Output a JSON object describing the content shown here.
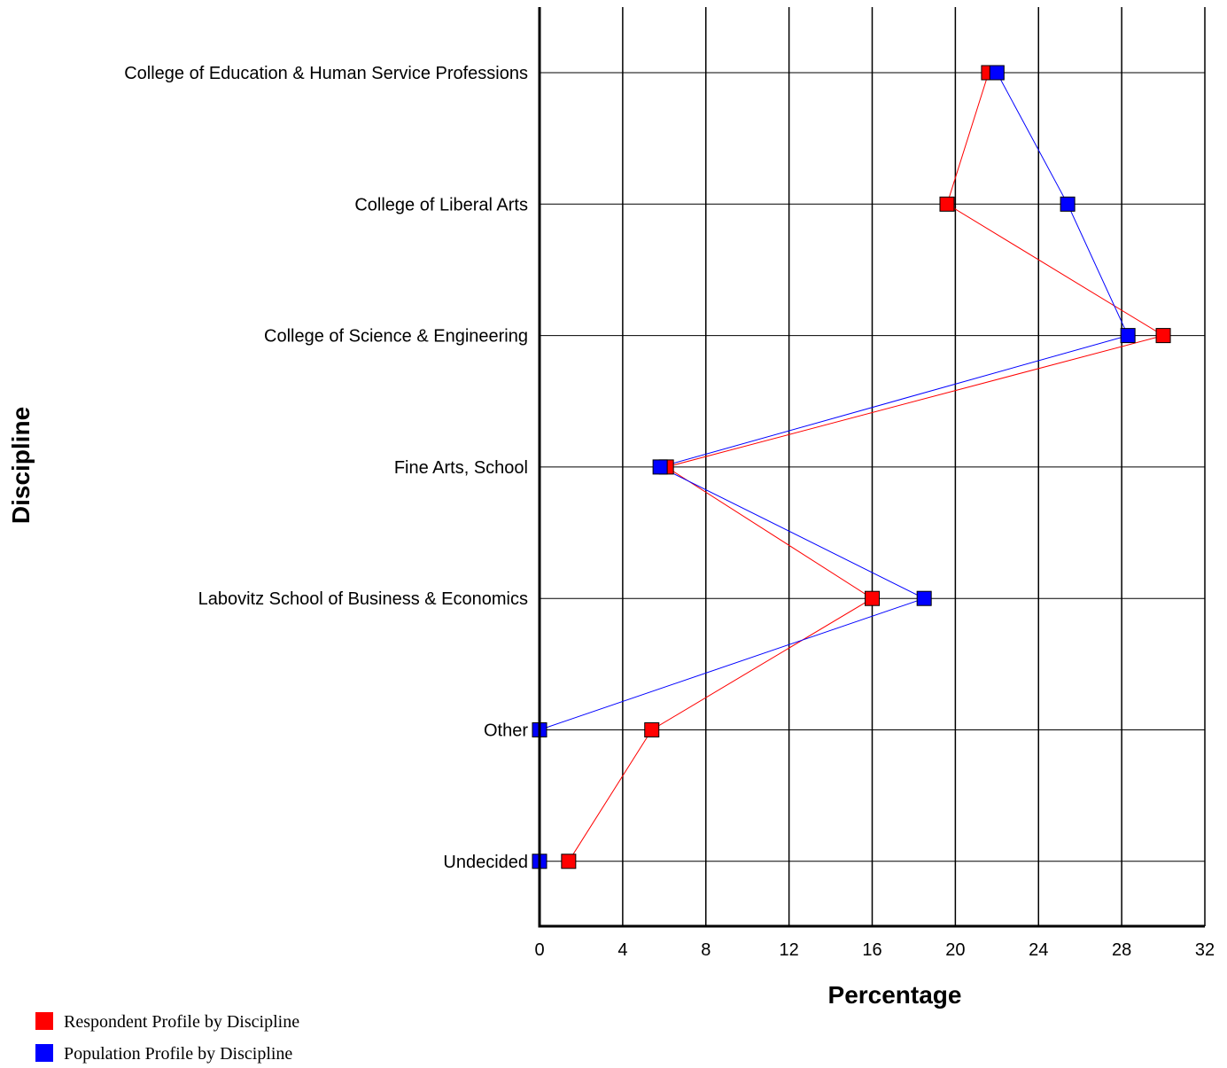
{
  "chart_data": {
    "type": "line",
    "orientation": "horizontal",
    "title": "",
    "xlabel": "Percentage",
    "ylabel": "Discipline",
    "xlim": [
      0,
      32
    ],
    "xticks": [
      0,
      4,
      8,
      12,
      16,
      20,
      24,
      28,
      32
    ],
    "grid": true,
    "legend_position": "bottom-left",
    "categories": [
      "College of Education & Human Service Professions",
      "College of Liberal Arts",
      "College of Science & Engineering",
      "Fine Arts, School",
      "Labovitz School of Business & Economics",
      "Other",
      "Undecided"
    ],
    "series": [
      {
        "name": "Respondent Profile by Discipline",
        "color": "#ff0000",
        "values": [
          21.6,
          19.6,
          30.0,
          6.1,
          16.0,
          5.4,
          1.4
        ]
      },
      {
        "name": "Population Profile by Discipline",
        "color": "#0000ff",
        "values": [
          22.0,
          25.4,
          28.3,
          5.8,
          18.5,
          0.0,
          0.0
        ]
      }
    ]
  }
}
